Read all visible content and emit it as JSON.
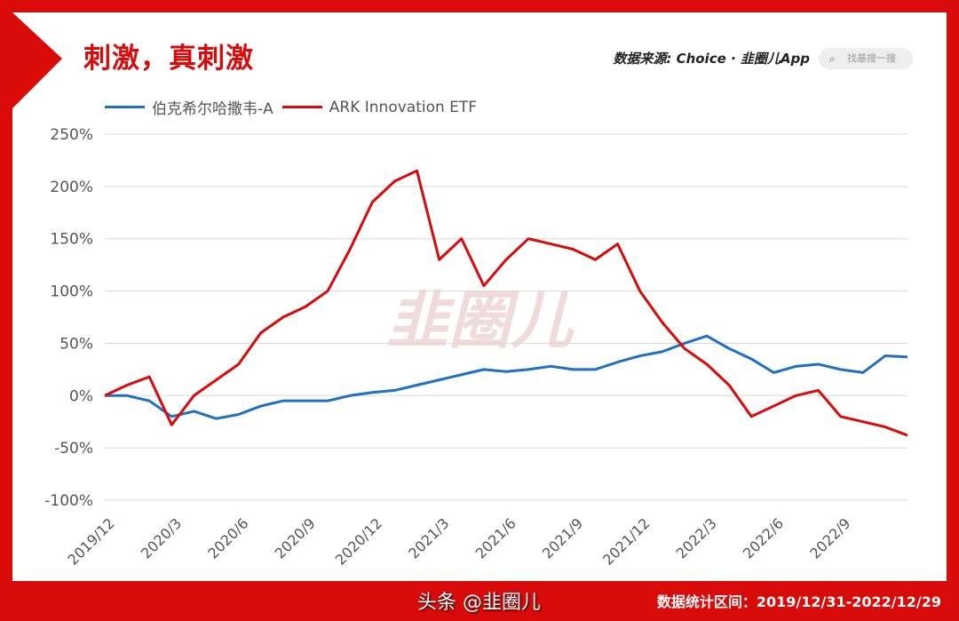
{
  "header": {
    "title": "刺激，真刺激",
    "source": "数据来源: Choice · 韭圈儿App",
    "search_placeholder": "找基搜一搜"
  },
  "footer": {
    "range": "数据统计区间：2019/12/31-2022/12/29",
    "watermark": "头条 @韭圈儿"
  },
  "watermark": "韭圈儿",
  "colors": {
    "frame": "#d90a0a",
    "series_blue": "#1f6fc5",
    "series_red": "#d90a0a"
  },
  "chart_data": {
    "type": "line",
    "ylim": [
      -100,
      250
    ],
    "yticks": [
      "250%",
      "200%",
      "150%",
      "100%",
      "50%",
      "0%",
      "-50%",
      "-100%"
    ],
    "ytick_values": [
      250,
      200,
      150,
      100,
      50,
      0,
      -50,
      -100
    ],
    "xticks": [
      "2019/12",
      "2020/3",
      "2020/6",
      "2020/9",
      "2020/12",
      "2021/3",
      "2021/6",
      "2021/9",
      "2021/12",
      "2022/3",
      "2022/6",
      "2022/9"
    ],
    "grid": true,
    "legend": "top-left",
    "x": [
      "2019-12",
      "2020-01",
      "2020-02",
      "2020-03",
      "2020-04",
      "2020-05",
      "2020-06",
      "2020-07",
      "2020-08",
      "2020-09",
      "2020-10",
      "2020-11",
      "2020-12",
      "2021-01",
      "2021-02",
      "2021-03",
      "2021-04",
      "2021-05",
      "2021-06",
      "2021-07",
      "2021-08",
      "2021-09",
      "2021-10",
      "2021-11",
      "2021-12",
      "2022-01",
      "2022-02",
      "2022-03",
      "2022-04",
      "2022-05",
      "2022-06",
      "2022-07",
      "2022-08",
      "2022-09",
      "2022-10",
      "2022-11",
      "2022-12"
    ],
    "series": [
      {
        "name": "伯克希尔哈撒韦-A",
        "color": "#1f6fc5",
        "values": [
          0,
          0,
          -5,
          -20,
          -15,
          -22,
          -18,
          -10,
          -5,
          -5,
          -5,
          0,
          3,
          5,
          10,
          15,
          20,
          25,
          23,
          25,
          28,
          25,
          25,
          32,
          38,
          42,
          50,
          57,
          45,
          35,
          22,
          28,
          30,
          25,
          22,
          38,
          37
        ]
      },
      {
        "name": "ARK Innovation ETF",
        "color": "#d90a0a",
        "values": [
          0,
          10,
          18,
          -28,
          0,
          15,
          30,
          60,
          75,
          85,
          100,
          140,
          185,
          205,
          215,
          130,
          150,
          105,
          130,
          150,
          145,
          140,
          130,
          145,
          100,
          70,
          45,
          30,
          10,
          -20,
          -10,
          0,
          5,
          -20,
          -25,
          -30,
          -38
        ]
      }
    ]
  }
}
